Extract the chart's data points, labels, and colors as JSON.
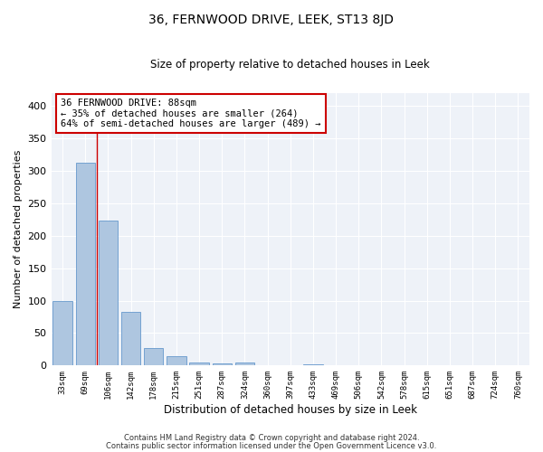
{
  "title": "36, FERNWOOD DRIVE, LEEK, ST13 8JD",
  "subtitle": "Size of property relative to detached houses in Leek",
  "xlabel": "Distribution of detached houses by size in Leek",
  "ylabel": "Number of detached properties",
  "categories": [
    "33sqm",
    "69sqm",
    "106sqm",
    "142sqm",
    "178sqm",
    "215sqm",
    "251sqm",
    "287sqm",
    "324sqm",
    "360sqm",
    "397sqm",
    "433sqm",
    "469sqm",
    "506sqm",
    "542sqm",
    "578sqm",
    "615sqm",
    "651sqm",
    "687sqm",
    "724sqm",
    "760sqm"
  ],
  "bar_heights": [
    100,
    312,
    223,
    82,
    27,
    14,
    5,
    3,
    5,
    0,
    0,
    2,
    0,
    0,
    0,
    0,
    0,
    0,
    0,
    0,
    1
  ],
  "bar_color": "#aec6e0",
  "bar_edge_color": "#6699cc",
  "background_color": "#eef2f8",
  "grid_color": "#ffffff",
  "redline_x": 1.5,
  "annotation_text": "36 FERNWOOD DRIVE: 88sqm\n← 35% of detached houses are smaller (264)\n64% of semi-detached houses are larger (489) →",
  "annotation_box_color": "#ffffff",
  "annotation_box_edge": "#cc0000",
  "ylim": [
    0,
    420
  ],
  "yticks": [
    0,
    50,
    100,
    150,
    200,
    250,
    300,
    350,
    400
  ],
  "footer1": "Contains HM Land Registry data © Crown copyright and database right 2024.",
  "footer2": "Contains public sector information licensed under the Open Government Licence v3.0."
}
